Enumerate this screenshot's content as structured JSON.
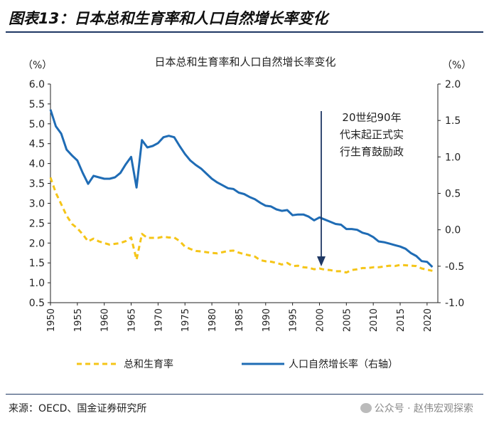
{
  "figure": {
    "title": "图表13：日本总和生育率和人口自然增长率变化",
    "source": "来源：OECD、国金证券研究所",
    "watermark": "公众号 · 赵伟宏观探索"
  },
  "chart_data": {
    "type": "line",
    "title": "日本总和生育率和人口自然增长率变化",
    "left_unit": "（%）",
    "right_unit": "（%）",
    "x": [
      1950,
      1951,
      1952,
      1953,
      1954,
      1955,
      1956,
      1957,
      1958,
      1959,
      1960,
      1961,
      1962,
      1963,
      1964,
      1965,
      1966,
      1967,
      1968,
      1969,
      1970,
      1971,
      1972,
      1973,
      1974,
      1975,
      1976,
      1977,
      1978,
      1979,
      1980,
      1981,
      1982,
      1983,
      1984,
      1985,
      1986,
      1987,
      1988,
      1989,
      1990,
      1991,
      1992,
      1993,
      1994,
      1995,
      1996,
      1997,
      1998,
      1999,
      2000,
      2001,
      2002,
      2003,
      2004,
      2005,
      2006,
      2007,
      2008,
      2009,
      2010,
      2011,
      2012,
      2013,
      2014,
      2015,
      2016,
      2017,
      2018,
      2019,
      2020,
      2021
    ],
    "x_ticks": [
      "1950",
      "1955",
      "1960",
      "1965",
      "1970",
      "1975",
      "1980",
      "1985",
      "1990",
      "1995",
      "2000",
      "2005",
      "2010",
      "2015",
      "2020"
    ],
    "xlim": [
      1950,
      2022
    ],
    "left_axis": {
      "min": 0.5,
      "max": 6.0,
      "ticks": [
        "6.0",
        "5.5",
        "5.0",
        "4.5",
        "4.0",
        "3.5",
        "3.0",
        "2.5",
        "2.0",
        "1.5",
        "1.0",
        "0.5"
      ]
    },
    "right_axis": {
      "min": -1.0,
      "max": 2.0,
      "ticks": [
        "2.0",
        "1.5",
        "1.0",
        "0.5",
        "0.0",
        "-0.5",
        "-1.0"
      ]
    },
    "series": [
      {
        "name": "总和生育率",
        "axis": "left",
        "color": "#f5c518",
        "style": "dashed",
        "values": [
          3.65,
          3.26,
          2.98,
          2.69,
          2.48,
          2.37,
          2.22,
          2.04,
          2.11,
          2.04,
          2.0,
          1.96,
          1.98,
          2.0,
          2.05,
          2.14,
          1.58,
          2.23,
          2.13,
          2.13,
          2.13,
          2.16,
          2.14,
          2.14,
          2.05,
          1.91,
          1.85,
          1.8,
          1.79,
          1.77,
          1.75,
          1.74,
          1.77,
          1.8,
          1.81,
          1.76,
          1.72,
          1.69,
          1.66,
          1.57,
          1.54,
          1.53,
          1.5,
          1.46,
          1.5,
          1.42,
          1.43,
          1.39,
          1.38,
          1.34,
          1.36,
          1.33,
          1.32,
          1.29,
          1.29,
          1.26,
          1.32,
          1.34,
          1.37,
          1.37,
          1.39,
          1.39,
          1.41,
          1.43,
          1.42,
          1.45,
          1.44,
          1.43,
          1.42,
          1.36,
          1.33,
          1.3
        ]
      },
      {
        "name": "人口自然增长率（右轴）",
        "axis": "right",
        "color": "#1f6cb5",
        "style": "solid",
        "values": [
          1.65,
          1.42,
          1.32,
          1.1,
          1.02,
          0.95,
          0.78,
          0.63,
          0.74,
          0.72,
          0.7,
          0.7,
          0.72,
          0.78,
          0.9,
          1.0,
          0.58,
          1.23,
          1.13,
          1.15,
          1.19,
          1.27,
          1.29,
          1.27,
          1.15,
          1.04,
          0.95,
          0.89,
          0.84,
          0.77,
          0.7,
          0.65,
          0.61,
          0.57,
          0.56,
          0.51,
          0.49,
          0.45,
          0.42,
          0.37,
          0.33,
          0.32,
          0.28,
          0.26,
          0.27,
          0.2,
          0.21,
          0.21,
          0.18,
          0.13,
          0.17,
          0.14,
          0.11,
          0.08,
          0.07,
          0.01,
          0.01,
          0.0,
          -0.04,
          -0.06,
          -0.1,
          -0.16,
          -0.17,
          -0.19,
          -0.21,
          -0.23,
          -0.26,
          -0.32,
          -0.36,
          -0.43,
          -0.44,
          -0.51
        ]
      }
    ],
    "annotation": {
      "text_lines": [
        "20世纪90年",
        "代末起正式实",
        "行生育鼓励政"
      ],
      "arrow_x": 2000
    },
    "legend": {
      "position": "bottom",
      "items": [
        "总和生育率",
        "人口自然增长率（右轴）"
      ]
    }
  }
}
